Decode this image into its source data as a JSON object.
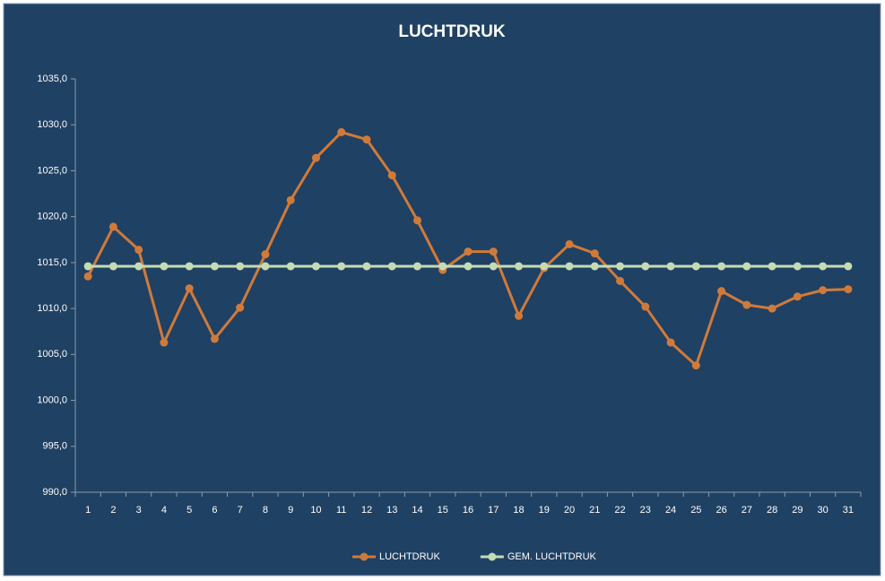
{
  "chart_data": {
    "type": "line",
    "title": "LUCHTDRUK",
    "categories": [
      "1",
      "2",
      "3",
      "4",
      "5",
      "6",
      "7",
      "8",
      "9",
      "10",
      "11",
      "12",
      "13",
      "14",
      "15",
      "16",
      "17",
      "18",
      "19",
      "20",
      "21",
      "22",
      "23",
      "24",
      "25",
      "26",
      "27",
      "28",
      "29",
      "30",
      "31"
    ],
    "series": [
      {
        "name": "LUCHTDRUK",
        "color": "#d07a3a",
        "values": [
          1013.5,
          1018.9,
          1016.4,
          1006.3,
          1012.2,
          1006.7,
          1010.1,
          1015.9,
          1021.8,
          1026.4,
          1029.2,
          1028.4,
          1024.5,
          1019.6,
          1014.2,
          1016.2,
          1016.2,
          1009.2,
          1014.4,
          1017.0,
          1016.0,
          1013.0,
          1010.2,
          1006.3,
          1003.8,
          1011.9,
          1010.4,
          1010.0,
          1011.3,
          1012.0,
          1012.1
        ]
      },
      {
        "name": "GEM. LUCHTDRUK",
        "color": "#c6dbb4",
        "values": [
          1014.6,
          1014.6,
          1014.6,
          1014.6,
          1014.6,
          1014.6,
          1014.6,
          1014.6,
          1014.6,
          1014.6,
          1014.6,
          1014.6,
          1014.6,
          1014.6,
          1014.6,
          1014.6,
          1014.6,
          1014.6,
          1014.6,
          1014.6,
          1014.6,
          1014.6,
          1014.6,
          1014.6,
          1014.6,
          1014.6,
          1014.6,
          1014.6,
          1014.6,
          1014.6,
          1014.6
        ]
      }
    ],
    "ylim": [
      990,
      1035
    ],
    "yticks": [
      {
        "value": 990,
        "label": "990,0"
      },
      {
        "value": 995,
        "label": "995,0"
      },
      {
        "value": 1000,
        "label": "1000,0"
      },
      {
        "value": 1005,
        "label": "1005,0"
      },
      {
        "value": 1010,
        "label": "1010,0"
      },
      {
        "value": 1015,
        "label": "1015,0"
      },
      {
        "value": 1020,
        "label": "1020,0"
      },
      {
        "value": 1025,
        "label": "1025,0"
      },
      {
        "value": 1030,
        "label": "1030,0"
      },
      {
        "value": 1035,
        "label": "1035,0"
      }
    ],
    "grid": false,
    "legend": "bottom"
  }
}
